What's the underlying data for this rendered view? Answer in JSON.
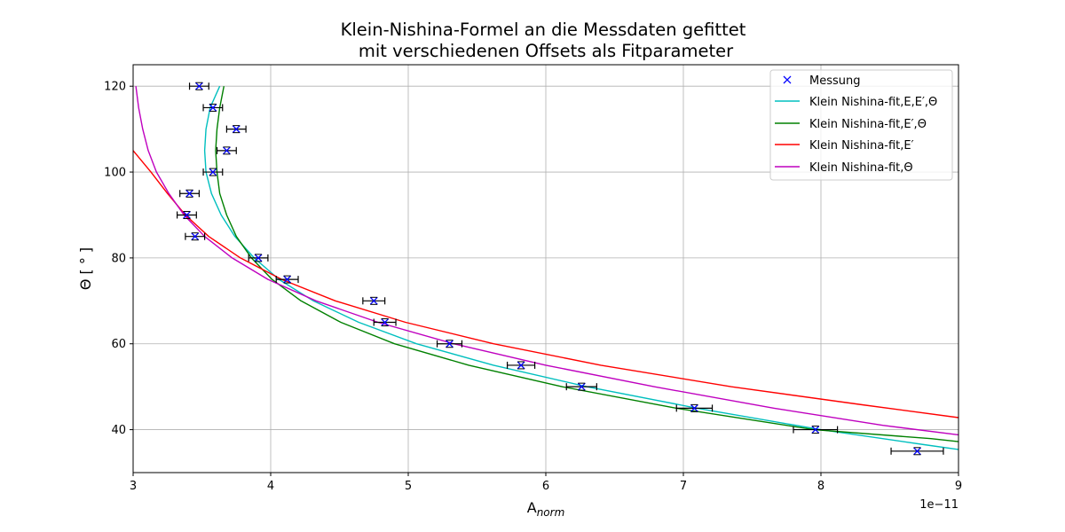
{
  "chart_data": {
    "type": "scatter",
    "title_line1": "Klein-Nishina-Formel an die Messdaten gefittet",
    "title_line2": "mit verschiedenen Offsets als Fitparameter",
    "xlabel_main": "A",
    "xlabel_sub": "norm",
    "ylabel": "Θ [ ° ]",
    "x_multiplier": "1e−11",
    "xlim": [
      3,
      9
    ],
    "ylim": [
      30,
      125
    ],
    "x_ticks": [
      3,
      4,
      5,
      6,
      7,
      8,
      9
    ],
    "y_ticks": [
      40,
      60,
      80,
      100,
      120
    ],
    "grid": true,
    "legend_position": "top-right",
    "colors": {
      "measurement": "#0000ff",
      "errorbar": "#000000",
      "fit1": "#00bfbf",
      "fit2": "#008000",
      "fit3": "#ff0000",
      "fit4": "#bf00bf"
    },
    "measurements": {
      "name": "Messung",
      "marker": "x",
      "points": [
        {
          "x": 3.48,
          "y": 120,
          "xerr": 0.07
        },
        {
          "x": 3.58,
          "y": 115,
          "xerr": 0.07
        },
        {
          "x": 3.75,
          "y": 110,
          "xerr": 0.07
        },
        {
          "x": 3.68,
          "y": 105,
          "xerr": 0.07
        },
        {
          "x": 3.58,
          "y": 100,
          "xerr": 0.07
        },
        {
          "x": 3.41,
          "y": 95,
          "xerr": 0.07
        },
        {
          "x": 3.39,
          "y": 90,
          "xerr": 0.07
        },
        {
          "x": 3.45,
          "y": 85,
          "xerr": 0.07
        },
        {
          "x": 3.91,
          "y": 80,
          "xerr": 0.07
        },
        {
          "x": 4.12,
          "y": 75,
          "xerr": 0.08
        },
        {
          "x": 4.75,
          "y": 70,
          "xerr": 0.08
        },
        {
          "x": 4.83,
          "y": 65,
          "xerr": 0.08
        },
        {
          "x": 5.3,
          "y": 60,
          "xerr": 0.09
        },
        {
          "x": 5.82,
          "y": 55,
          "xerr": 0.1
        },
        {
          "x": 6.26,
          "y": 50,
          "xerr": 0.11
        },
        {
          "x": 7.08,
          "y": 45,
          "xerr": 0.13
        },
        {
          "x": 7.96,
          "y": 40,
          "xerr": 0.16
        },
        {
          "x": 8.7,
          "y": 35,
          "xerr": 0.19
        }
      ]
    },
    "series": [
      {
        "name": "Klein Nishina-fit,E,E′,Θ",
        "color": "#00bfbf",
        "points": [
          [
            3.63,
            120
          ],
          [
            3.56,
            115
          ],
          [
            3.53,
            110
          ],
          [
            3.52,
            105
          ],
          [
            3.53,
            100
          ],
          [
            3.57,
            95
          ],
          [
            3.64,
            90
          ],
          [
            3.74,
            85
          ],
          [
            3.88,
            80
          ],
          [
            4.06,
            75
          ],
          [
            4.31,
            70
          ],
          [
            4.64,
            65
          ],
          [
            5.06,
            60
          ],
          [
            5.62,
            55
          ],
          [
            6.3,
            50
          ],
          [
            7.1,
            45
          ],
          [
            8.0,
            40
          ],
          [
            8.75,
            36.5
          ],
          [
            9.0,
            35.4
          ]
        ]
      },
      {
        "name": "Klein Nishina-fit,E′,Θ",
        "color": "#008000",
        "points": [
          [
            3.66,
            120
          ],
          [
            3.63,
            115
          ],
          [
            3.61,
            110
          ],
          [
            3.6,
            105
          ],
          [
            3.61,
            100
          ],
          [
            3.63,
            95
          ],
          [
            3.68,
            90
          ],
          [
            3.75,
            85
          ],
          [
            3.86,
            80
          ],
          [
            4.01,
            75
          ],
          [
            4.22,
            70
          ],
          [
            4.51,
            65
          ],
          [
            4.9,
            60
          ],
          [
            5.44,
            55
          ],
          [
            6.12,
            50
          ],
          [
            6.95,
            45
          ],
          [
            7.95,
            40
          ],
          [
            8.8,
            37.9
          ],
          [
            9.0,
            37.2
          ]
        ]
      },
      {
        "name": "Klein Nishina-fit,E′",
        "color": "#ff0000",
        "points": [
          [
            3.0,
            105
          ],
          [
            3.13,
            100
          ],
          [
            3.25,
            95
          ],
          [
            3.38,
            90
          ],
          [
            3.55,
            85
          ],
          [
            3.78,
            80
          ],
          [
            4.08,
            75
          ],
          [
            4.47,
            70
          ],
          [
            4.98,
            65
          ],
          [
            5.62,
            60
          ],
          [
            6.4,
            55
          ],
          [
            7.35,
            50
          ],
          [
            8.3,
            45.8
          ],
          [
            9.0,
            42.8
          ]
        ]
      },
      {
        "name": "Klein Nishina-fit,Θ",
        "color": "#bf00bf",
        "points": [
          [
            3.02,
            120
          ],
          [
            3.04,
            115
          ],
          [
            3.07,
            110
          ],
          [
            3.11,
            105
          ],
          [
            3.17,
            100
          ],
          [
            3.26,
            95
          ],
          [
            3.37,
            90
          ],
          [
            3.52,
            85
          ],
          [
            3.72,
            80
          ],
          [
            3.98,
            75
          ],
          [
            4.33,
            70
          ],
          [
            4.78,
            65
          ],
          [
            5.33,
            60
          ],
          [
            6.0,
            55
          ],
          [
            6.79,
            50
          ],
          [
            7.66,
            45
          ],
          [
            8.45,
            41.0
          ],
          [
            9.0,
            38.8
          ]
        ]
      }
    ]
  }
}
